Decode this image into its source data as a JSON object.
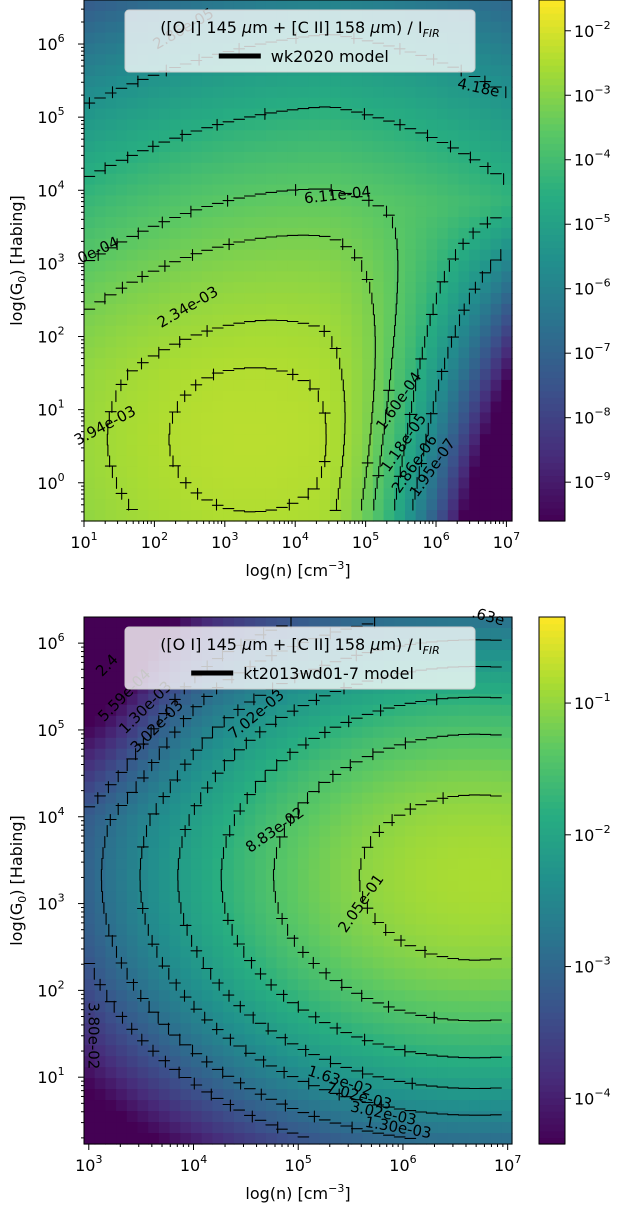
{
  "chart_data": [
    {
      "type": "heatmap",
      "legend": {
        "title_main": "([O I] 145 ",
        "title_mu": "μ",
        "title_mid": "m + [C II] 158 ",
        "title_end": "m) / I",
        "title_sub": "FIR",
        "entry": "wk2020 model",
        "placement": "top-center"
      },
      "xlabel_main": "log(n) [cm",
      "xlabel_sup": "−3",
      "xlabel_end": "]",
      "ylabel_main": "log(G",
      "ylabel_sub": "0",
      "ylabel_end": ") [Habing]",
      "x_scale": "log",
      "y_scale": "log",
      "xlim": [
        10,
        12000000
      ],
      "ylim": [
        0.3,
        4000000
      ],
      "xticks": [
        10,
        100,
        1000,
        10000,
        100000,
        1000000,
        10000000
      ],
      "xtick_exps": [
        "1",
        "2",
        "3",
        "4",
        "5",
        "6",
        "7"
      ],
      "yticks": [
        1,
        10,
        100,
        1000,
        10000,
        100000,
        1000000
      ],
      "ytick_exps": [
        "0",
        "1",
        "2",
        "3",
        "4",
        "5",
        "6"
      ],
      "colorbar": {
        "scale": "log",
        "range": [
          2.5e-10,
          0.03
        ],
        "ticks": [
          1e-09,
          1e-08,
          1e-07,
          1e-06,
          1e-05,
          0.0001,
          0.001,
          0.01
        ],
        "tick_exps": [
          "−9",
          "−8",
          "−7",
          "−6",
          "−5",
          "−4",
          "−3",
          "−2"
        ],
        "colormap": "viridis"
      },
      "contour_labels": [
        {
          "text": "3.94e-03",
          "x": 20,
          "y": 6,
          "angle": -28
        },
        {
          "text": "2.34e-03",
          "x": 300,
          "y": 250,
          "angle": -30
        },
        {
          "text": "6.11e-04",
          "x": 40000,
          "y": 8500,
          "angle": -6
        },
        {
          "text": "0e-04",
          "x": 16,
          "y": 1500,
          "angle": -25
        },
        {
          "text": "2.86e-05",
          "x": 260,
          "y": 1600000,
          "angle": -30
        },
        {
          "text": "4.18e",
          "x": 4000000,
          "y": 250000,
          "angle": 12
        },
        {
          "text": "1.60e-04",
          "x": 300000,
          "y": 13,
          "angle": -55
        },
        {
          "text": "1.18e-05",
          "x": 350000,
          "y": 3.5,
          "angle": -55
        },
        {
          "text": "2.86e-06",
          "x": 500000,
          "y": 1.8,
          "angle": -55
        },
        {
          "text": "1.95e-07",
          "x": 900000,
          "y": 1.6,
          "angle": -55
        }
      ]
    },
    {
      "type": "heatmap",
      "legend": {
        "title_main": "([O I] 145 ",
        "title_mu": "μ",
        "title_mid": "m + [C II] 158 ",
        "title_end": "m) / I",
        "title_sub": "FIR",
        "entry": "kt2013wd01-7 model",
        "placement": "top-center"
      },
      "xlabel_main": "log(n) [cm",
      "xlabel_sup": "−3",
      "xlabel_end": "]",
      "ylabel_main": "log(G",
      "ylabel_sub": "0",
      "ylabel_end": ") [Habing]",
      "x_scale": "log",
      "y_scale": "log",
      "xlim": [
        900,
        11000000
      ],
      "ylim": [
        1.7,
        2000000
      ],
      "xticks": [
        1000,
        10000,
        100000,
        1000000,
        10000000
      ],
      "xtick_exps": [
        "3",
        "4",
        "5",
        "6",
        "7"
      ],
      "yticks": [
        10,
        100,
        1000,
        10000,
        100000,
        1000000
      ],
      "ytick_exps": [
        "1",
        "2",
        "3",
        "4",
        "5",
        "6"
      ],
      "colorbar": {
        "scale": "log",
        "range": [
          4.5e-05,
          0.45
        ],
        "ticks": [
          0.0001,
          0.001,
          0.01,
          0.1
        ],
        "tick_exps": [
          "−4",
          "−3",
          "−2",
          "−1"
        ],
        "colormap": "viridis"
      },
      "contour_labels": [
        {
          "text": "2.05e-01",
          "x": 400000,
          "y": 1000,
          "angle": -55
        },
        {
          "text": "8.83e-02",
          "x": 60000,
          "y": 7000,
          "angle": -35
        },
        {
          "text": "3.80e-02",
          "x": 1100,
          "y": 30,
          "angle": 90
        },
        {
          "text": "7.02e-03",
          "x": 40000,
          "y": 150000,
          "angle": -40
        },
        {
          "text": "3.02e-03",
          "x": 4500,
          "y": 110000,
          "angle": -45
        },
        {
          "text": "1.30e-03",
          "x": 3500,
          "y": 180000,
          "angle": -45
        },
        {
          "text": "5.59e-04",
          "x": 2200,
          "y": 250000,
          "angle": -45
        },
        {
          "text": "2.4",
          "x": 1500,
          "y": 550000,
          "angle": -45
        },
        {
          "text": ".63e",
          "x": 6500000,
          "y": 2000000,
          "angle": 15
        },
        {
          "text": "1.63e-02",
          "x": 250000,
          "y": 9,
          "angle": 18
        },
        {
          "text": "7.02e-03",
          "x": 380000,
          "y": 6,
          "angle": 15
        },
        {
          "text": "3.02e-03",
          "x": 650000,
          "y": 3.8,
          "angle": 12
        },
        {
          "text": "1.30e-03",
          "x": 900000,
          "y": 2.6,
          "angle": 10
        }
      ]
    }
  ]
}
